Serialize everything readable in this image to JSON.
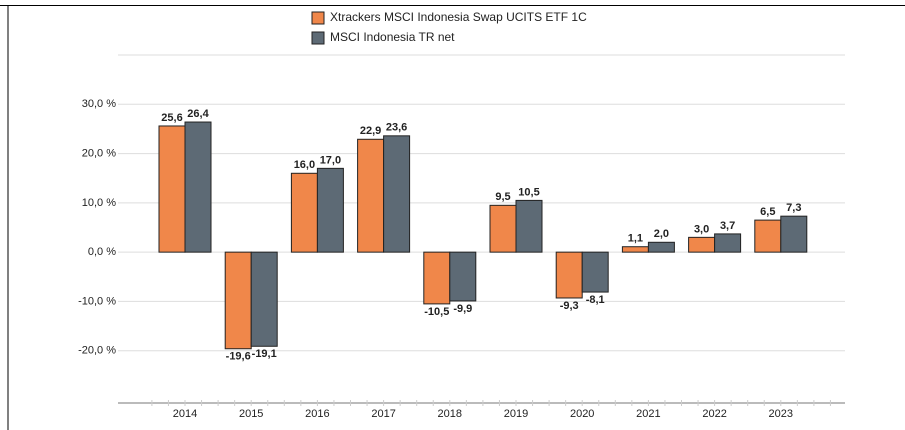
{
  "chart_data": {
    "type": "bar",
    "categories": [
      "2014",
      "2015",
      "2016",
      "2017",
      "2018",
      "2019",
      "2020",
      "2021",
      "2022",
      "2023"
    ],
    "series": [
      {
        "name": "Xtrackers MSCI Indonesia Swap UCITS ETF 1C",
        "color": "#f0874a",
        "values": [
          25.6,
          -19.6,
          16.0,
          22.9,
          -10.5,
          9.5,
          -9.3,
          1.1,
          3.0,
          6.5
        ],
        "value_labels": [
          "25,6",
          "-19,6",
          "16,0",
          "22,9",
          "-10,5",
          "9,5",
          "-9,3",
          "1,1",
          "3,0",
          "6,5"
        ]
      },
      {
        "name": "MSCI Indonesia TR net",
        "color": "#5d6a75",
        "values": [
          26.4,
          -19.1,
          17.0,
          23.6,
          -9.9,
          10.5,
          -8.1,
          2.0,
          3.7,
          7.3
        ],
        "value_labels": [
          "26,4",
          "-19,1",
          "17,0",
          "23,6",
          "-9,9",
          "10,5",
          "-8,1",
          "2,0",
          "3,7",
          "7,3"
        ]
      }
    ],
    "ylim": [
      -30,
      40
    ],
    "yticks": [
      {
        "value": -20,
        "label": "-20,0 %"
      },
      {
        "value": -10,
        "label": "-10,0 %"
      },
      {
        "value": 0,
        "label": "0,0 %"
      },
      {
        "value": 10,
        "label": "10,0 %"
      },
      {
        "value": 20,
        "label": "20,0 %"
      },
      {
        "value": 30,
        "label": "30,0 %"
      }
    ],
    "grid": true
  }
}
